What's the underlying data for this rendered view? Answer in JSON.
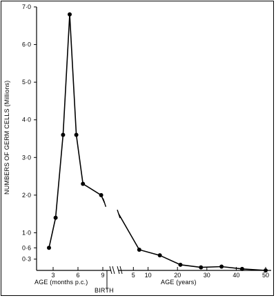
{
  "chart_data": {
    "type": "line",
    "title": "",
    "ylabel": "NUMBERS OF GERM CELLS (Millions)",
    "ylim": [
      0,
      7
    ],
    "y_ticks": [
      {
        "value": 0.3,
        "label": "0·3"
      },
      {
        "value": 0.6,
        "label": "0·6"
      },
      {
        "value": 1.0,
        "label": "1·0"
      },
      {
        "value": 2.0,
        "label": "2·0"
      },
      {
        "value": 3.0,
        "label": "3·0"
      },
      {
        "value": 4.0,
        "label": "4·0"
      },
      {
        "value": 5.0,
        "label": "5·0"
      },
      {
        "value": 6.0,
        "label": "6·0"
      },
      {
        "value": 7.0,
        "label": "7·0"
      }
    ],
    "x_axes": [
      {
        "xlabel": "AGE (months p.c.)",
        "xlim": [
          1,
          10
        ],
        "ticks": [
          {
            "value": 3,
            "label": "3"
          },
          {
            "value": 6,
            "label": "6"
          },
          {
            "value": 9,
            "label": "9"
          }
        ]
      },
      {
        "xlabel": "AGE (years)",
        "xlim": [
          0,
          50
        ],
        "ticks": [
          {
            "value": 5,
            "label": "5"
          },
          {
            "value": 10,
            "label": "10"
          },
          {
            "value": 20,
            "label": "20"
          },
          {
            "value": 30,
            "label": "30"
          },
          {
            "value": 40,
            "label": "40"
          },
          {
            "value": 50,
            "label": "50"
          }
        ]
      }
    ],
    "annotations": [
      "BIRTH"
    ],
    "series": [
      {
        "segment": "prenatal",
        "axis": 0,
        "points": [
          {
            "x": 2.5,
            "y": 0.6
          },
          {
            "x": 3.3,
            "y": 1.4
          },
          {
            "x": 4.2,
            "y": 3.6
          },
          {
            "x": 5.0,
            "y": 6.8
          },
          {
            "x": 5.8,
            "y": 3.6
          },
          {
            "x": 6.6,
            "y": 2.3
          },
          {
            "x": 8.8,
            "y": 2.0
          },
          {
            "x": 9.2,
            "y": 1.8
          }
        ]
      },
      {
        "segment": "postnatal",
        "axis": 1,
        "points": [
          {
            "x": 0,
            "y": 1.5
          },
          {
            "x": 7,
            "y": 0.55
          },
          {
            "x": 14,
            "y": 0.4
          },
          {
            "x": 21,
            "y": 0.15
          },
          {
            "x": 28,
            "y": 0.08
          },
          {
            "x": 35,
            "y": 0.1
          },
          {
            "x": 42,
            "y": 0.04
          },
          {
            "x": 50,
            "y": 0.0
          }
        ]
      }
    ],
    "grid": false,
    "colors": {
      "line": "#000000",
      "marker": "#000000"
    }
  }
}
